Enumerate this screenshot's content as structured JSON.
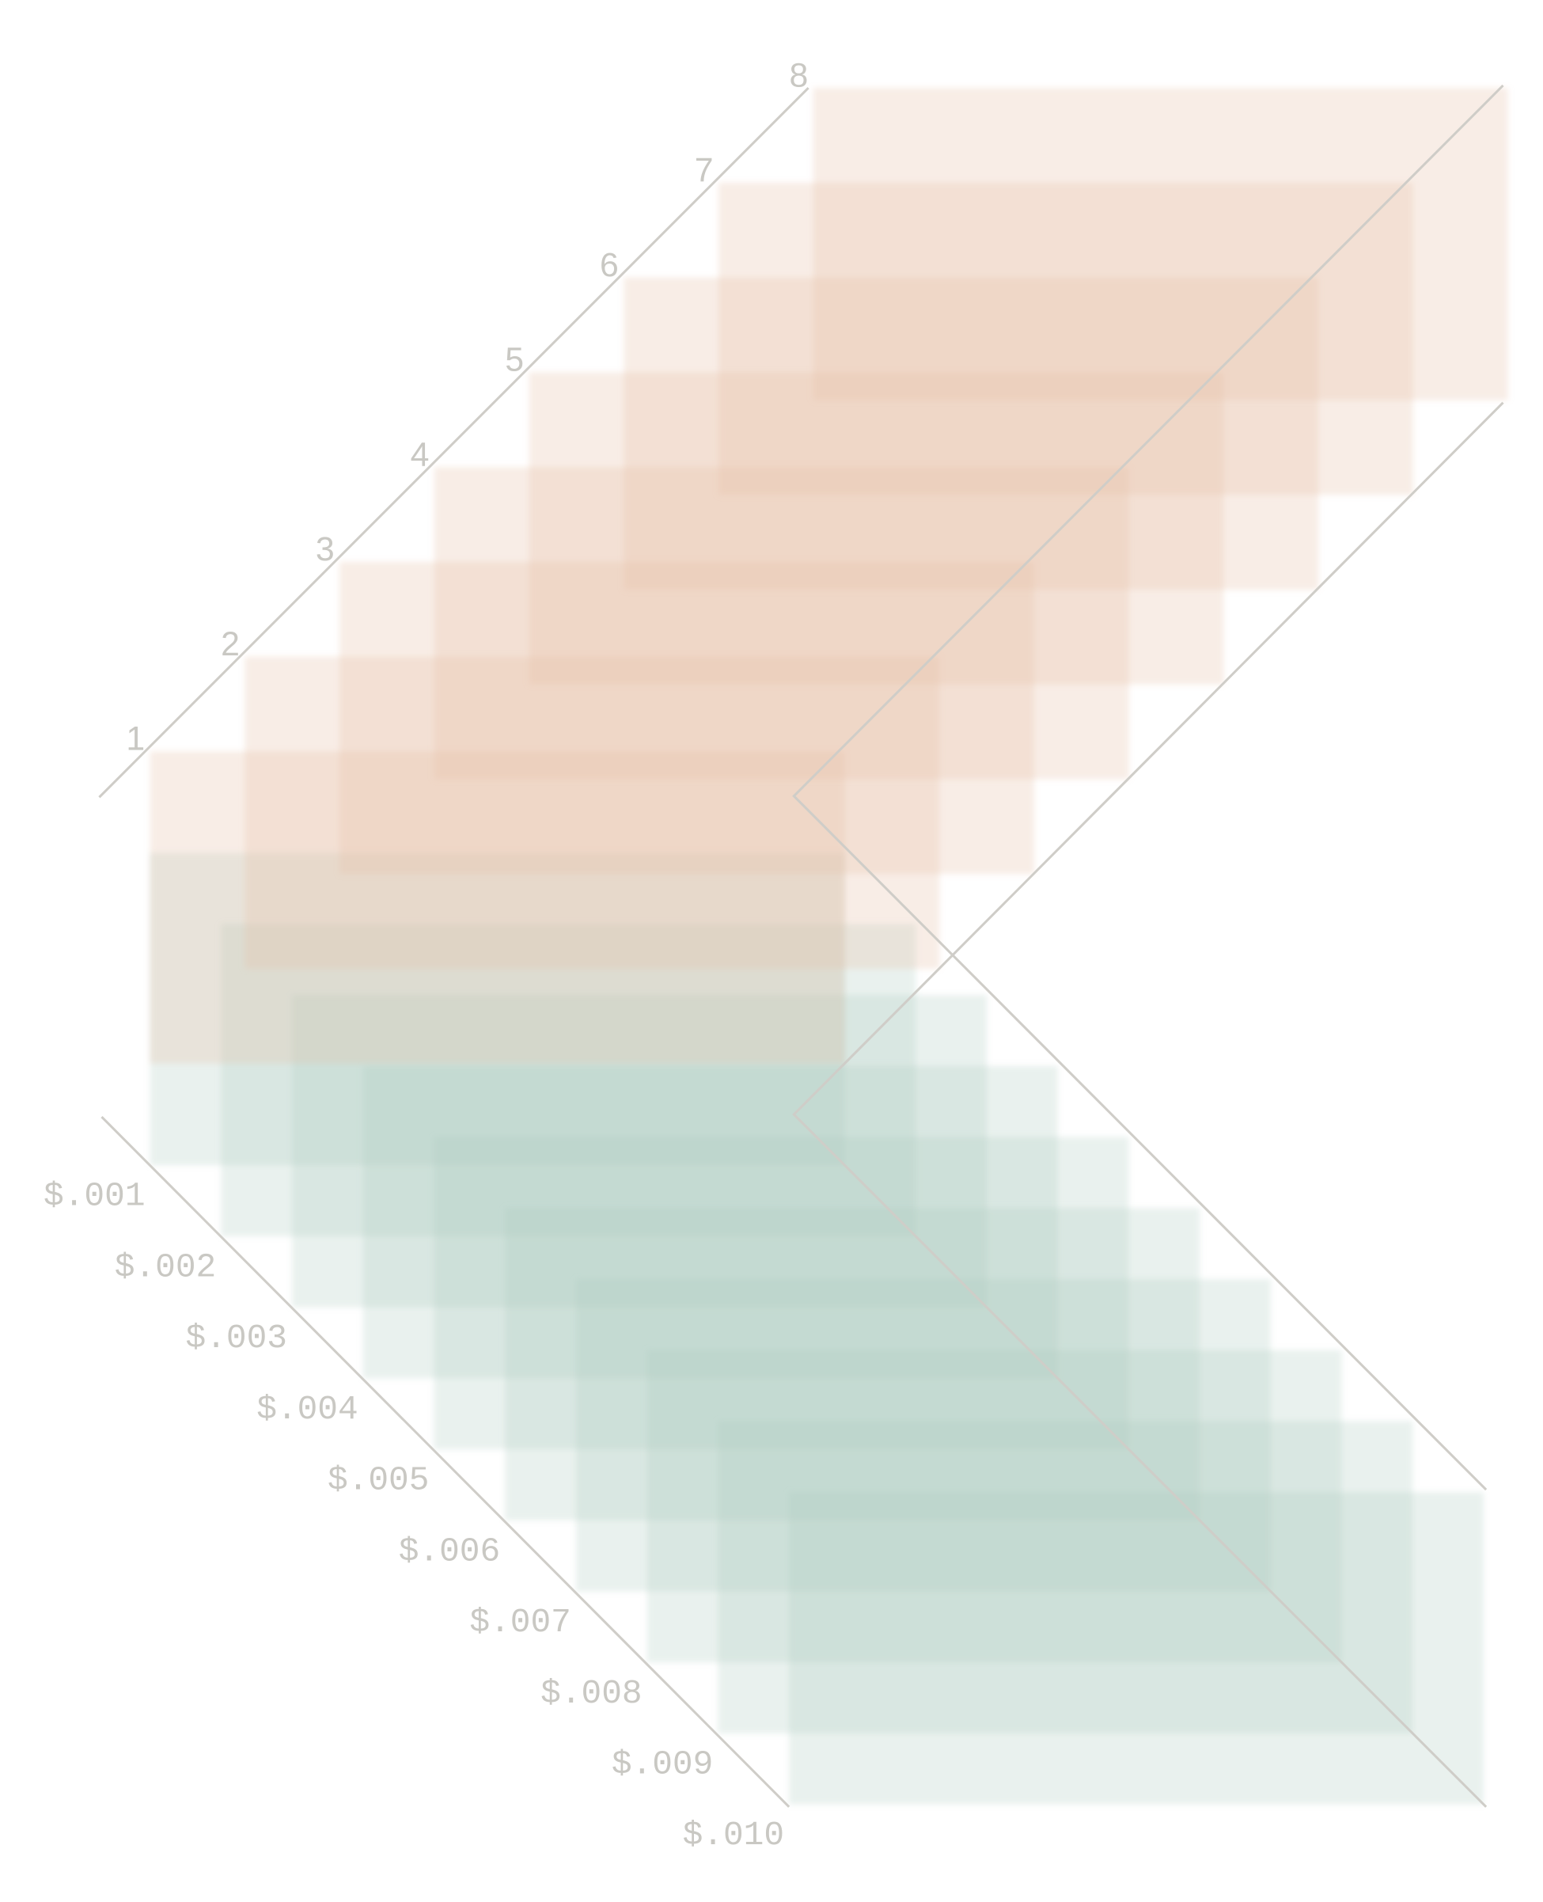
{
  "top_axis": {
    "labels": [
      "1",
      "2",
      "3",
      "4",
      "5",
      "6",
      "7",
      "8"
    ]
  },
  "bottom_axis": {
    "labels": [
      "$.001",
      "$.002",
      "$.003",
      "$.004",
      "$.005",
      "$.006",
      "$.007",
      "$.008",
      "$.009",
      "$.010"
    ]
  }
}
